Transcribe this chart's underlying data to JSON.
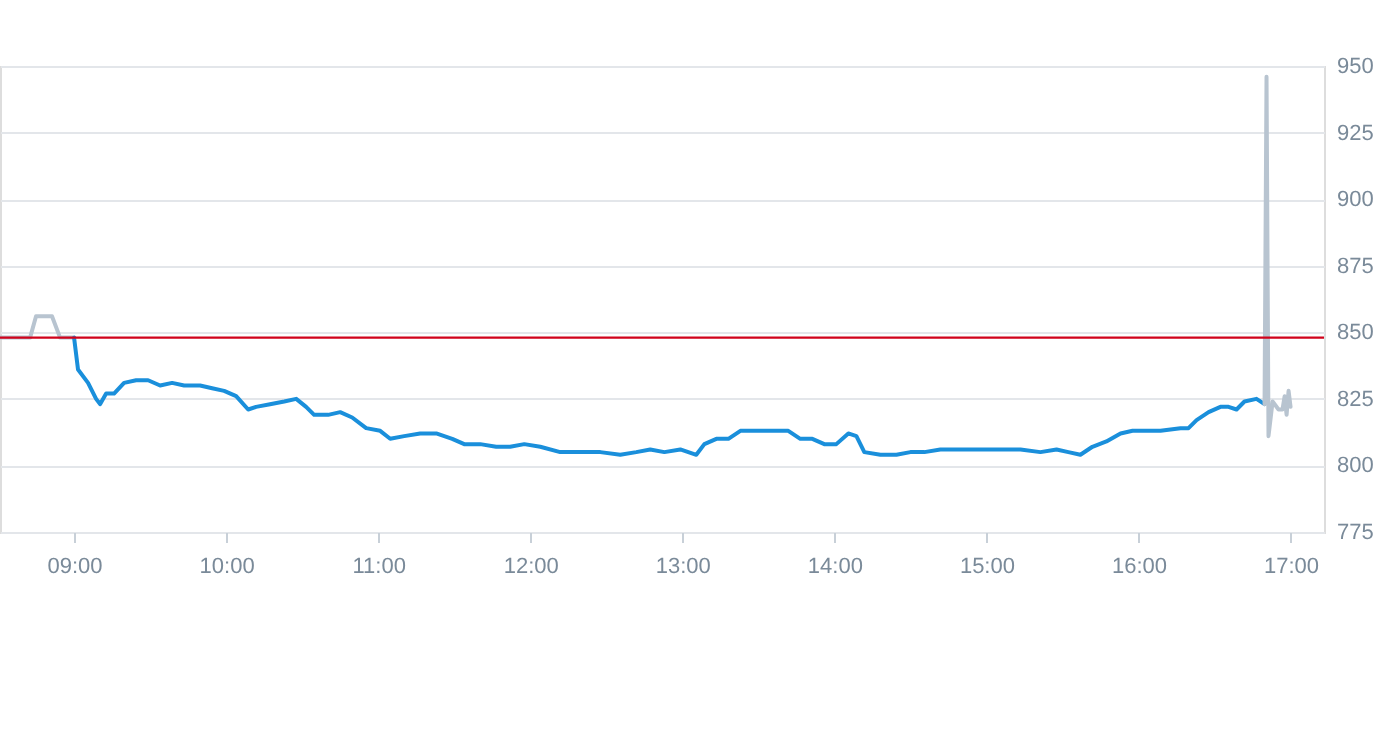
{
  "chart_data": {
    "type": "line",
    "xlim": [
      8.513,
      17.22
    ],
    "ylim": [
      775,
      950
    ],
    "yticks": [
      775,
      800,
      825,
      850,
      875,
      900,
      925,
      950
    ],
    "xticks": [
      {
        "value": 9,
        "label": "09:00"
      },
      {
        "value": 10,
        "label": "10:00"
      },
      {
        "value": 11,
        "label": "11:00"
      },
      {
        "value": 12,
        "label": "12:00"
      },
      {
        "value": 13,
        "label": "13:00"
      },
      {
        "value": 14,
        "label": "14:00"
      },
      {
        "value": 15,
        "label": "15:00"
      },
      {
        "value": 16,
        "label": "16:00"
      },
      {
        "value": 17,
        "label": "17:00"
      }
    ],
    "grid": "y",
    "legend": false,
    "marker": "none",
    "line_style": "solid",
    "ref_lines": [
      {
        "axis": "y",
        "value": 848,
        "color": "#d0021b"
      }
    ],
    "series": [
      {
        "color": "#b8c4d0",
        "x": [
          8.513,
          8.711,
          8.75,
          8.855,
          8.908,
          9.0
        ],
        "values": [
          848,
          848,
          856,
          856,
          848,
          848
        ]
      },
      {
        "color": "#1a8fdb",
        "x": [
          9.0,
          9.026,
          9.092,
          9.145,
          9.171,
          9.211,
          9.263,
          9.329,
          9.408,
          9.487,
          9.566,
          9.645,
          9.724,
          9.829,
          9.908,
          9.987,
          10.066,
          10.145,
          10.197,
          10.289,
          10.382,
          10.461,
          10.526,
          10.579,
          10.671,
          10.75,
          10.829,
          10.921,
          11.013,
          11.079,
          11.171,
          11.276,
          11.382,
          11.487,
          11.566,
          11.671,
          11.776,
          11.868,
          11.961,
          12.066,
          12.197,
          12.329,
          12.461,
          12.592,
          12.697,
          12.789,
          12.882,
          12.987,
          13.092,
          13.145,
          13.224,
          13.303,
          13.382,
          13.487,
          13.579,
          13.697,
          13.776,
          13.855,
          13.934,
          14.013,
          14.092,
          14.145,
          14.197,
          14.303,
          14.408,
          14.5,
          14.592,
          14.697,
          14.829,
          14.961,
          15.092,
          15.224,
          15.355,
          15.461,
          15.539,
          15.618,
          15.697,
          15.789,
          15.882,
          15.961,
          16.039,
          16.145,
          16.276,
          16.329,
          16.382,
          16.461,
          16.539,
          16.592,
          16.645,
          16.697,
          16.776,
          16.829
        ],
        "values": [
          848,
          836,
          831,
          825,
          823,
          827,
          827,
          831,
          832,
          832,
          830,
          831,
          830,
          830,
          829,
          828,
          826,
          821,
          822,
          823,
          824,
          825,
          822,
          819,
          819,
          820,
          818,
          814,
          813,
          810,
          811,
          812,
          812,
          810,
          808,
          808,
          807,
          807,
          808,
          807,
          805,
          805,
          805,
          804,
          805,
          806,
          805,
          806,
          804,
          808,
          810,
          810,
          813,
          813,
          813,
          813,
          810,
          810,
          808,
          808,
          812,
          811,
          805,
          804,
          804,
          805,
          805,
          806,
          806,
          806,
          806,
          806,
          805,
          806,
          805,
          804,
          807,
          809,
          812,
          813,
          813,
          813,
          814,
          814,
          817,
          820,
          822,
          822,
          821,
          824,
          825,
          823
        ]
      },
      {
        "color": "#b8c4d0",
        "x": [
          16.829,
          16.842,
          16.855,
          16.882,
          16.921,
          16.947,
          16.961,
          16.974,
          16.987,
          17.0
        ],
        "values": [
          823,
          946,
          811,
          824,
          821,
          821,
          826,
          819,
          828,
          822
        ]
      }
    ]
  }
}
